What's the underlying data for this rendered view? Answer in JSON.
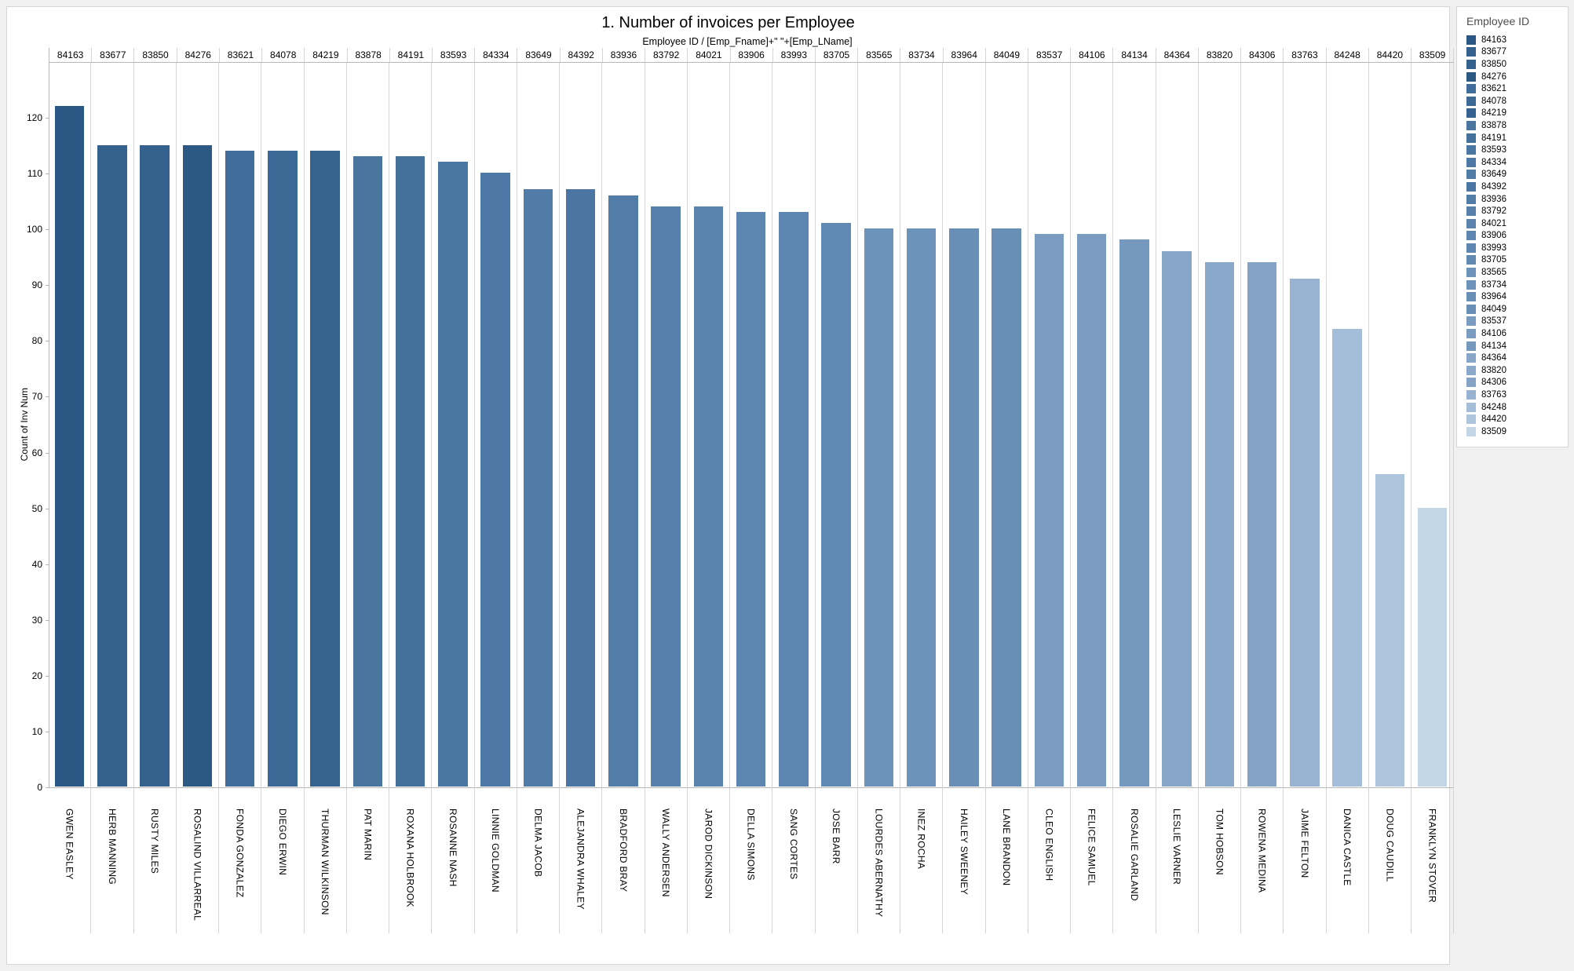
{
  "page": {
    "background": "#f0f0f0"
  },
  "chart": {
    "title": "1. Number of invoices per Employee",
    "column_header": "Employee ID  /  [Emp_Fname]+\" \"+[Emp_LName]",
    "y_axis_title": "Count of Inv Num"
  },
  "legend": {
    "title": "Employee ID"
  },
  "chart_data": {
    "type": "bar",
    "title": "1. Number of invoices per Employee",
    "xlabel": "Employee ID  /  [Emp_Fname]+\" \"+[Emp_LName]",
    "ylabel": "Count of Inv Num",
    "ylim": [
      0,
      130
    ],
    "yticks": [
      0,
      10,
      20,
      30,
      40,
      50,
      60,
      70,
      80,
      90,
      100,
      110,
      120
    ],
    "grid": "vertical-column-separators-only",
    "legend_position": "right",
    "employee_ids": [
      "84163",
      "83677",
      "83850",
      "84276",
      "83621",
      "84078",
      "84219",
      "83878",
      "84191",
      "83593",
      "84334",
      "83649",
      "84392",
      "83936",
      "83792",
      "84021",
      "83906",
      "83993",
      "83705",
      "83565",
      "83734",
      "83964",
      "84049",
      "83537",
      "84106",
      "84134",
      "84364",
      "83820",
      "84306",
      "83763",
      "84248",
      "84420",
      "83509"
    ],
    "categories": [
      "GWEN EASLEY",
      "HERB MANNING",
      "RUSTY MILES",
      "ROSALIND VILLARREAL",
      "FONDA GONZALEZ",
      "DIEGO ERWIN",
      "THURMAN WILKINSON",
      "PAT MARIN",
      "ROXANA HOLBROOK",
      "ROSANNE NASH",
      "LINNIE GOLDMAN",
      "DELMA JACOB",
      "ALEJANDRA WHALEY",
      "BRADFORD BRAY",
      "WALLY ANDERSEN",
      "JAROD DICKINSON",
      "DELLA SIMONS",
      "SANG CORTES",
      "JOSE BARR",
      "LOURDES ABERNATHY",
      "INEZ ROCHA",
      "HAILEY SWEENEY",
      "LANE BRANDON",
      "CLEO ENGLISH",
      "FELICE SAMUEL",
      "ROSALIE GARLAND",
      "LESLIE VARNER",
      "TOM HOBSON",
      "ROWENA MEDINA",
      "JAIME FELTON",
      "DANICA CASTLE",
      "DOUG CAUDILL",
      "FRANKLYN STOVER"
    ],
    "values": [
      122,
      115,
      115,
      115,
      114,
      114,
      114,
      113,
      113,
      112,
      110,
      107,
      107,
      106,
      104,
      104,
      103,
      103,
      101,
      100,
      100,
      100,
      100,
      99,
      99,
      98,
      96,
      94,
      94,
      91,
      82,
      56,
      50
    ],
    "bar_colors": [
      "#2A5783",
      "#34618E",
      "#34618E",
      "#2C5884",
      "#406D9B",
      "#3D6997",
      "#35628E",
      "#49759F",
      "#44709C",
      "#4A76A3",
      "#4E79A6",
      "#527CA8",
      "#4B76A3",
      "#537DA9",
      "#5781AC",
      "#5A83AE",
      "#5D86B0",
      "#5D86B0",
      "#618AB3",
      "#6E93BA",
      "#6E93BA",
      "#698FB7",
      "#698FB7",
      "#7B9CC1",
      "#7B9CC1",
      "#7599BE",
      "#87A6C8",
      "#8AA8CA",
      "#84A3C5",
      "#98B3D1",
      "#A4BDD8",
      "#AEC5DD",
      "#C2D6E8"
    ],
    "axis_line_color": "#b7b7b7",
    "separator_color": "#d4d4d4"
  }
}
